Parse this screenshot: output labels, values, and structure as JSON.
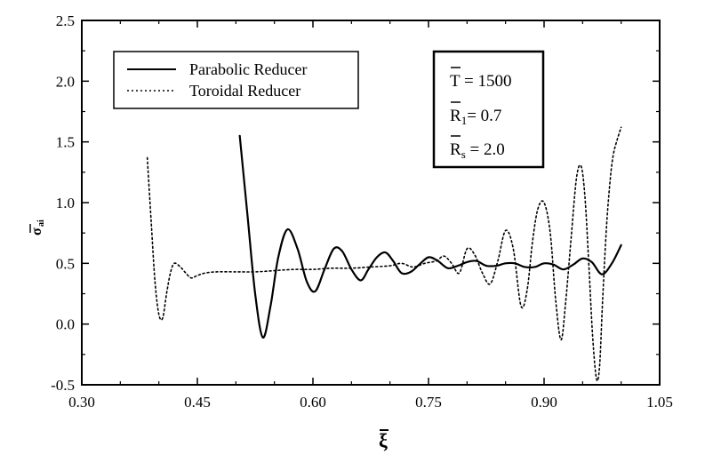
{
  "chart_data": {
    "type": "line",
    "title": "",
    "xlabel": "ξ",
    "ylabel": "σ",
    "ylabel_sub": "ai",
    "xlim": [
      0.3,
      1.05
    ],
    "ylim": [
      -0.5,
      2.5
    ],
    "x_ticks": [
      "0.30",
      "0.45",
      "0.60",
      "0.75",
      "0.90",
      "1.05"
    ],
    "x_tick_values": [
      0.3,
      0.45,
      0.6,
      0.75,
      0.9,
      1.05
    ],
    "y_ticks": [
      "-0.5",
      "0.0",
      "0.5",
      "1.0",
      "1.5",
      "2.0",
      "2.5"
    ],
    "y_tick_values": [
      -0.5,
      0.0,
      0.5,
      1.0,
      1.5,
      2.0,
      2.5
    ],
    "grid": false,
    "legend_position": "top-left",
    "series": [
      {
        "name": "Parabolic Reducer",
        "style": "solid",
        "x": [
          0.505,
          0.515,
          0.525,
          0.535,
          0.545,
          0.555,
          0.567,
          0.58,
          0.592,
          0.603,
          0.615,
          0.627,
          0.638,
          0.65,
          0.662,
          0.672,
          0.683,
          0.694,
          0.704,
          0.715,
          0.727,
          0.738,
          0.75,
          0.762,
          0.775,
          0.788,
          0.8,
          0.812,
          0.825,
          0.838,
          0.85,
          0.862,
          0.875,
          0.888,
          0.9,
          0.912,
          0.925,
          0.938,
          0.95,
          0.962,
          0.975,
          0.988,
          1.0
        ],
        "y": [
          1.55,
          0.9,
          0.25,
          -0.11,
          0.15,
          0.55,
          0.78,
          0.62,
          0.35,
          0.27,
          0.45,
          0.62,
          0.6,
          0.45,
          0.36,
          0.45,
          0.55,
          0.59,
          0.52,
          0.42,
          0.43,
          0.49,
          0.55,
          0.52,
          0.46,
          0.48,
          0.51,
          0.52,
          0.48,
          0.48,
          0.5,
          0.5,
          0.47,
          0.47,
          0.5,
          0.49,
          0.45,
          0.49,
          0.54,
          0.51,
          0.41,
          0.5,
          0.65
        ]
      },
      {
        "name": "Toroidal Reducer",
        "style": "dotted",
        "x": [
          0.385,
          0.39,
          0.395,
          0.4,
          0.405,
          0.41,
          0.415,
          0.42,
          0.428,
          0.435,
          0.442,
          0.45,
          0.46,
          0.475,
          0.5,
          0.525,
          0.55,
          0.575,
          0.6,
          0.625,
          0.65,
          0.675,
          0.7,
          0.715,
          0.73,
          0.745,
          0.76,
          0.77,
          0.78,
          0.79,
          0.8,
          0.81,
          0.82,
          0.83,
          0.84,
          0.85,
          0.86,
          0.87,
          0.878,
          0.885,
          0.892,
          0.9,
          0.908,
          0.915,
          0.922,
          0.928,
          0.935,
          0.942,
          0.948,
          0.953,
          0.958,
          0.963,
          0.968,
          0.972,
          0.976,
          0.981,
          0.986,
          0.99,
          0.995,
          1.0
        ],
        "y": [
          1.37,
          0.85,
          0.35,
          0.08,
          0.05,
          0.25,
          0.42,
          0.5,
          0.47,
          0.42,
          0.38,
          0.4,
          0.42,
          0.43,
          0.43,
          0.43,
          0.44,
          0.45,
          0.45,
          0.46,
          0.46,
          0.47,
          0.48,
          0.5,
          0.47,
          0.5,
          0.52,
          0.56,
          0.5,
          0.42,
          0.62,
          0.57,
          0.42,
          0.33,
          0.52,
          0.77,
          0.62,
          0.15,
          0.28,
          0.68,
          0.95,
          1.0,
          0.75,
          0.2,
          -0.13,
          0.18,
          0.7,
          1.2,
          1.3,
          1.05,
          0.5,
          -0.1,
          -0.45,
          -0.35,
          0.2,
          0.8,
          1.2,
          1.4,
          1.52,
          1.62
        ]
      }
    ],
    "annotation_box": [
      "T = 1500",
      "R1= 0.7",
      "Rs = 2.0"
    ]
  },
  "legend": {
    "entries": [
      "Parabolic Reducer",
      "Toroidal Reducer"
    ]
  },
  "params": {
    "line1": "T = 1500",
    "line2_main": "R",
    "line2_sub": "1",
    "line2_rest": "= 0.7",
    "line3_main": "R",
    "line3_sub": "s",
    "line3_rest": " = 2.0"
  },
  "axes": {
    "xlabel": "ξ",
    "ylabel": "σ",
    "ylabel_sub": "ai"
  }
}
